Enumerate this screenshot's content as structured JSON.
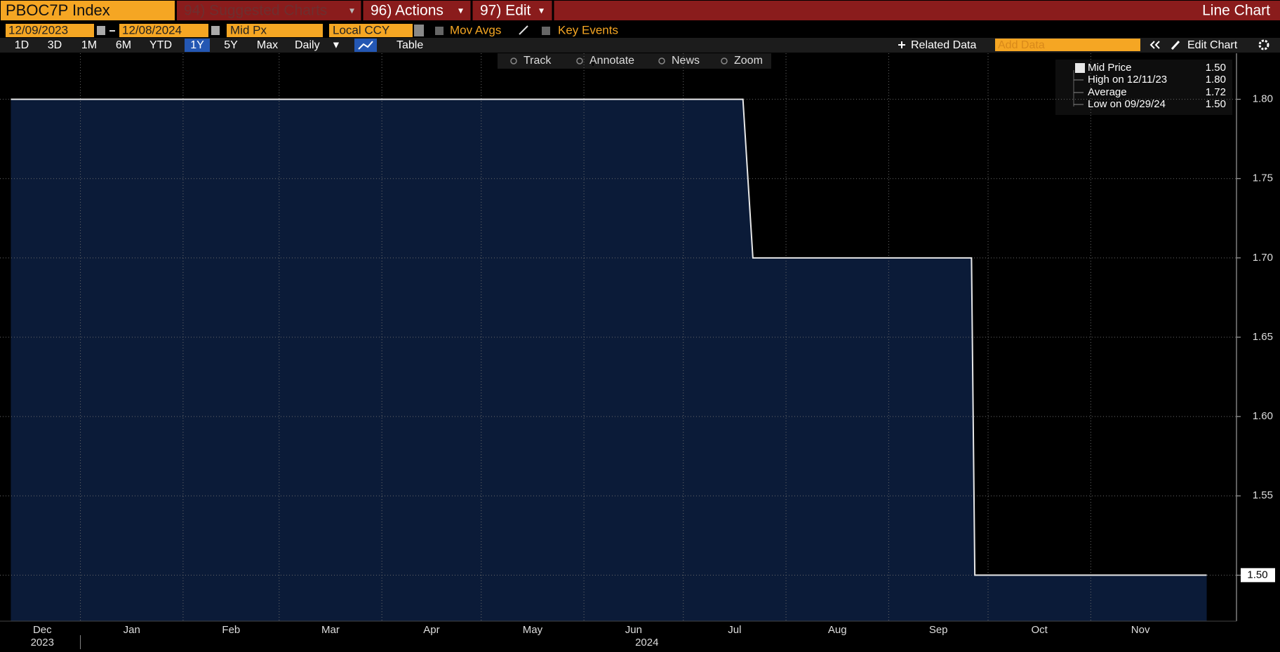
{
  "toolbar": {
    "ticker": "PBOC7P Index",
    "menu": [
      "94) Suggested Charts",
      "96) Actions",
      "97) Edit"
    ],
    "view": "Line Chart",
    "start_date": "12/09/2023",
    "end_date": "12/08/2024",
    "field": "Mid Px",
    "currency": "Local CCY",
    "mov_avgs": "Mov Avgs",
    "key_events": "Key Events",
    "periods": [
      "1D",
      "3D",
      "1M",
      "6M",
      "YTD",
      "1Y",
      "5Y",
      "Max"
    ],
    "frequency": "Daily",
    "table": "Table",
    "related": "Related Data",
    "add_data": "Add Data",
    "edit_chart": "Edit Chart",
    "tools": [
      "Track",
      "Annotate",
      "News",
      "Zoom"
    ]
  },
  "chart_data": {
    "type": "line",
    "x": [
      "2023-12-11",
      "2024-07-19",
      "2024-07-22",
      "2024-09-26",
      "2024-09-27",
      "2024-12-06"
    ],
    "series": [
      {
        "name": "Mid Price",
        "color": "#e8e8e8",
        "fill": "#0b1b38",
        "values": [
          1.8,
          1.8,
          1.7,
          1.7,
          1.5,
          1.5
        ],
        "last_label": "1.50"
      }
    ],
    "legend": [
      {
        "label": "High on 12/11/23",
        "value": "1.80"
      },
      {
        "label": "Average",
        "value": "1.72"
      },
      {
        "label": "Low on 09/29/24",
        "value": "1.50"
      }
    ],
    "xlim": [
      "2023-12-09",
      "2024-12-08"
    ],
    "xticks": [
      {
        "value": "2023-12",
        "label": "Dec"
      },
      {
        "value": "2024-01",
        "label": "Jan"
      },
      {
        "value": "2024-02",
        "label": "Feb"
      },
      {
        "value": "2024-03",
        "label": "Mar"
      },
      {
        "value": "2024-04",
        "label": "Apr"
      },
      {
        "value": "2024-05",
        "label": "May"
      },
      {
        "value": "2024-06",
        "label": "Jun"
      },
      {
        "value": "2024-07",
        "label": "Jul"
      },
      {
        "value": "2024-08",
        "label": "Aug"
      },
      {
        "value": "2024-09",
        "label": "Sep"
      },
      {
        "value": "2024-10",
        "label": "Oct"
      },
      {
        "value": "2024-11",
        "label": "Nov"
      }
    ],
    "xyears": [
      "2023",
      "2024"
    ],
    "ylim": [
      1.471,
      1.829
    ],
    "yticks": [
      {
        "value": 1.5,
        "label": "1.50"
      },
      {
        "value": 1.55,
        "label": "1.55"
      },
      {
        "value": 1.6,
        "label": "1.60"
      },
      {
        "value": 1.65,
        "label": "1.65"
      },
      {
        "value": 1.7,
        "label": "1.70"
      },
      {
        "value": 1.75,
        "label": "1.75"
      },
      {
        "value": 1.8,
        "label": "1.80"
      }
    ],
    "grid": true
  }
}
